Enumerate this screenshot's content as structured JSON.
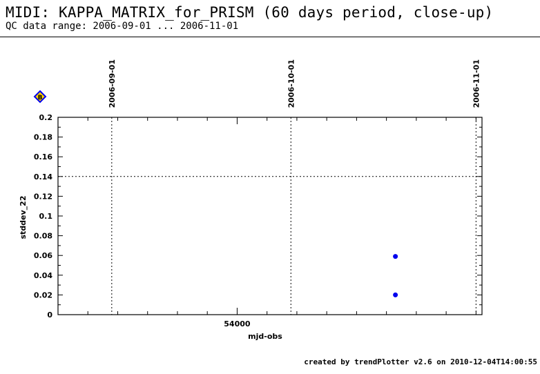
{
  "header": {
    "title": "MIDI: KAPPA_MATRIX_for_PRISM (60 days period, close-up)",
    "subtitle": "QC data range: 2006-09-01 ... 2006-11-01"
  },
  "footer": {
    "text": "created by trendPlotter v2.6 on 2010-12-04T14:00:55"
  },
  "legend": {
    "marker_label": "B",
    "marker_color": "#0000ee",
    "marker_fill": "#ffd200"
  },
  "chart_data": {
    "type": "scatter",
    "xlabel": "mjd-obs",
    "ylabel": "stddev_22",
    "xlim": [
      53970,
      54041
    ],
    "ylim": [
      0,
      0.2
    ],
    "x_ticks": [
      54000
    ],
    "x_tick_labels": [
      "54000"
    ],
    "y_ticks": [
      0,
      0.02,
      0.04,
      0.06,
      0.08,
      0.1,
      0.12,
      0.14,
      0.16,
      0.18,
      0.2
    ],
    "y_tick_labels": [
      "0",
      "0.02",
      "0.04",
      "0.06",
      "0.08",
      "0.1",
      "0.12",
      "0.14",
      "0.16",
      "0.18",
      "0.2"
    ],
    "date_markers": [
      {
        "label": "2006-09-01",
        "mjd": 53979
      },
      {
        "label": "2006-10-01",
        "mjd": 54009
      },
      {
        "label": "2006-11-01",
        "mjd": 54040
      }
    ],
    "reference_line": 0.14,
    "series": [
      {
        "color": "#0000ee",
        "points": [
          {
            "x": 54026.5,
            "y": 0.059
          },
          {
            "x": 54026.5,
            "y": 0.02
          }
        ]
      }
    ]
  }
}
